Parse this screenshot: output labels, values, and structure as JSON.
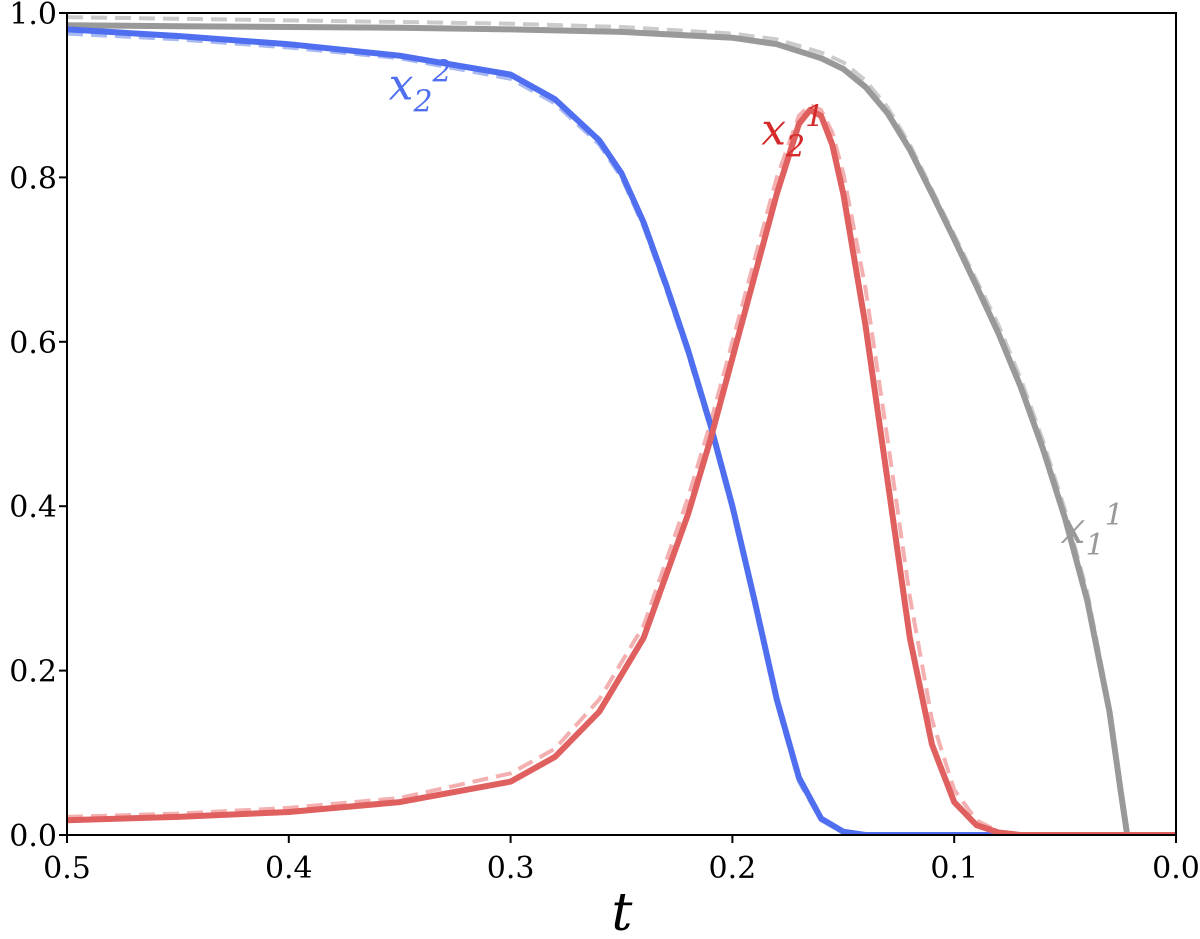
{
  "chart_data": {
    "type": "line",
    "xlabel": "t",
    "ylabel": "",
    "xlim": [
      0.5,
      0.0
    ],
    "ylim": [
      0.0,
      1.0
    ],
    "x_inverted": true,
    "grid": false,
    "xticks": [
      "0.5",
      "0.4",
      "0.3",
      "0.2",
      "0.1",
      "0.0"
    ],
    "yticks": [
      "0.0",
      "0.2",
      "0.4",
      "0.6",
      "0.8",
      "1.0"
    ],
    "x_tick_values": [
      0.5,
      0.4,
      0.3,
      0.2,
      0.1,
      0.0
    ],
    "y_tick_values": [
      0.0,
      0.2,
      0.4,
      0.6,
      0.8,
      1.0
    ],
    "series": [
      {
        "key": "x11_dashed",
        "style": "dashed",
        "color": "#cbcbcb",
        "x": [
          0.5,
          0.45,
          0.4,
          0.35,
          0.3,
          0.25,
          0.2,
          0.18,
          0.16,
          0.15,
          0.14,
          0.13,
          0.12,
          0.11,
          0.1,
          0.09,
          0.08,
          0.07,
          0.06,
          0.05,
          0.04,
          0.03,
          0.025,
          0.022,
          0.02,
          0.0
        ],
        "y": [
          0.995,
          0.993,
          0.991,
          0.989,
          0.987,
          0.983,
          0.975,
          0.968,
          0.952,
          0.94,
          0.918,
          0.885,
          0.84,
          0.785,
          0.73,
          0.675,
          0.62,
          0.555,
          0.48,
          0.395,
          0.295,
          0.155,
          0.06,
          0.0,
          0.0,
          0.0
        ]
      },
      {
        "key": "x22_dashed",
        "style": "dashed",
        "color": "#a9b9f2",
        "x": [
          0.5,
          0.45,
          0.4,
          0.35,
          0.3,
          0.28,
          0.26,
          0.25,
          0.24,
          0.23,
          0.22,
          0.21,
          0.2,
          0.19,
          0.18,
          0.17,
          0.16,
          0.15,
          0.14,
          0.12,
          0.1,
          0.0
        ],
        "y": [
          0.975,
          0.968,
          0.958,
          0.945,
          0.92,
          0.89,
          0.84,
          0.8,
          0.74,
          0.665,
          0.585,
          0.495,
          0.395,
          0.28,
          0.16,
          0.065,
          0.018,
          0.003,
          0.0,
          0.0,
          0.0,
          0.0
        ]
      },
      {
        "key": "x21_dashed",
        "style": "dashed",
        "color": "#f4b0b0",
        "x": [
          0.5,
          0.45,
          0.4,
          0.35,
          0.3,
          0.28,
          0.26,
          0.24,
          0.22,
          0.21,
          0.2,
          0.19,
          0.18,
          0.17,
          0.165,
          0.16,
          0.155,
          0.15,
          0.14,
          0.13,
          0.12,
          0.11,
          0.1,
          0.09,
          0.08,
          0.07,
          0.0
        ],
        "y": [
          0.022,
          0.026,
          0.033,
          0.045,
          0.075,
          0.105,
          0.165,
          0.255,
          0.41,
          0.5,
          0.6,
          0.7,
          0.8,
          0.875,
          0.888,
          0.882,
          0.855,
          0.805,
          0.665,
          0.48,
          0.29,
          0.14,
          0.055,
          0.018,
          0.004,
          0.0,
          0.0
        ]
      },
      {
        "key": "x11",
        "name": "x₁¹",
        "style": "solid",
        "color": "#999999",
        "x": [
          0.5,
          0.45,
          0.4,
          0.35,
          0.3,
          0.25,
          0.2,
          0.18,
          0.16,
          0.15,
          0.14,
          0.13,
          0.12,
          0.11,
          0.1,
          0.09,
          0.08,
          0.07,
          0.06,
          0.05,
          0.04,
          0.03,
          0.025,
          0.022,
          0.02,
          0.0
        ],
        "y": [
          0.985,
          0.984,
          0.983,
          0.982,
          0.98,
          0.977,
          0.97,
          0.962,
          0.945,
          0.932,
          0.91,
          0.878,
          0.834,
          0.78,
          0.725,
          0.668,
          0.61,
          0.545,
          0.47,
          0.385,
          0.285,
          0.15,
          0.055,
          0.0,
          0.0,
          0.0
        ]
      },
      {
        "key": "x22",
        "name": "x₂²",
        "style": "solid",
        "color": "#4f6ff0",
        "x": [
          0.5,
          0.45,
          0.4,
          0.35,
          0.3,
          0.28,
          0.26,
          0.25,
          0.24,
          0.23,
          0.22,
          0.21,
          0.2,
          0.19,
          0.18,
          0.17,
          0.16,
          0.15,
          0.14,
          0.12,
          0.1,
          0.0
        ],
        "y": [
          0.98,
          0.972,
          0.962,
          0.948,
          0.925,
          0.895,
          0.845,
          0.805,
          0.745,
          0.67,
          0.59,
          0.5,
          0.4,
          0.285,
          0.165,
          0.07,
          0.02,
          0.004,
          0.0,
          0.0,
          0.0,
          0.0
        ]
      },
      {
        "key": "x21",
        "name": "x₂¹",
        "style": "solid",
        "color": "#e05f5f",
        "x": [
          0.5,
          0.45,
          0.4,
          0.35,
          0.3,
          0.28,
          0.26,
          0.24,
          0.22,
          0.21,
          0.2,
          0.19,
          0.18,
          0.17,
          0.165,
          0.16,
          0.155,
          0.15,
          0.14,
          0.13,
          0.12,
          0.11,
          0.1,
          0.09,
          0.08,
          0.07,
          0.0
        ],
        "y": [
          0.018,
          0.022,
          0.028,
          0.04,
          0.065,
          0.095,
          0.15,
          0.24,
          0.39,
          0.48,
          0.58,
          0.68,
          0.78,
          0.865,
          0.882,
          0.875,
          0.84,
          0.78,
          0.62,
          0.43,
          0.24,
          0.11,
          0.04,
          0.012,
          0.003,
          0.0,
          0.0
        ]
      }
    ],
    "annotations": [
      {
        "series": "x22",
        "base": "x",
        "sub": "2",
        "sup": "2",
        "at_x": 0.355,
        "at_y": 0.895,
        "color": "#4f6ff0"
      },
      {
        "series": "x21",
        "base": "x",
        "sub": "2",
        "sup": "1",
        "at_x": 0.187,
        "at_y": 0.84,
        "color": "#d42a2a"
      },
      {
        "series": "x11",
        "base": "x",
        "sub": "1",
        "sup": "1",
        "at_x": 0.052,
        "at_y": 0.355,
        "color": "#999999"
      }
    ]
  }
}
